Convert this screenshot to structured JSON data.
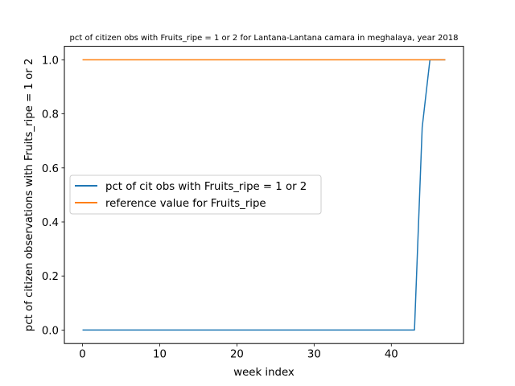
{
  "chart_data": {
    "type": "line",
    "title": "pct of citizen obs with Fruits_ripe = 1 or 2 for Lantana-Lantana camara in meghalaya, year 2018",
    "xlabel": "week index",
    "ylabel": "pct of citizen observations with Fruits_ripe = 1 or 2",
    "xlim": [
      -2.35,
      49.35
    ],
    "ylim": [
      -0.05,
      1.05
    ],
    "xticks": [
      0,
      10,
      20,
      30,
      40
    ],
    "yticks": [
      0.0,
      0.2,
      0.4,
      0.6,
      0.8,
      1.0
    ],
    "xtick_labels": [
      "0",
      "10",
      "20",
      "30",
      "40"
    ],
    "ytick_labels": [
      "0.0",
      "0.2",
      "0.4",
      "0.6",
      "0.8",
      "1.0"
    ],
    "grid": false,
    "legend_position": "center-left",
    "series": [
      {
        "name": "pct of cit obs with Fruits_ripe = 1 or 2",
        "color": "#1f77b4",
        "x": [
          0,
          1,
          2,
          3,
          4,
          5,
          6,
          7,
          8,
          9,
          10,
          11,
          12,
          13,
          14,
          15,
          16,
          17,
          18,
          19,
          20,
          21,
          22,
          23,
          24,
          25,
          26,
          27,
          28,
          29,
          30,
          31,
          32,
          33,
          34,
          35,
          36,
          37,
          38,
          39,
          40,
          41,
          42,
          43,
          44,
          45,
          46,
          47
        ],
        "y": [
          0,
          0,
          0,
          0,
          0,
          0,
          0,
          0,
          0,
          0,
          0,
          0,
          0,
          0,
          0,
          0,
          0,
          0,
          0,
          0,
          0,
          0,
          0,
          0,
          0,
          0,
          0,
          0,
          0,
          0,
          0,
          0,
          0,
          0,
          0,
          0,
          0,
          0,
          0,
          0,
          0,
          0,
          0,
          0,
          0.75,
          1,
          1,
          1
        ]
      },
      {
        "name": "reference value for Fruits_ripe",
        "color": "#ff7f0e",
        "x": [
          0,
          1,
          2,
          3,
          4,
          5,
          6,
          7,
          8,
          9,
          10,
          11,
          12,
          13,
          14,
          15,
          16,
          17,
          18,
          19,
          20,
          21,
          22,
          23,
          24,
          25,
          26,
          27,
          28,
          29,
          30,
          31,
          32,
          33,
          34,
          35,
          36,
          37,
          38,
          39,
          40,
          41,
          42,
          43,
          44,
          45,
          46,
          47
        ],
        "y": [
          1,
          1,
          1,
          1,
          1,
          1,
          1,
          1,
          1,
          1,
          1,
          1,
          1,
          1,
          1,
          1,
          1,
          1,
          1,
          1,
          1,
          1,
          1,
          1,
          1,
          1,
          1,
          1,
          1,
          1,
          1,
          1,
          1,
          1,
          1,
          1,
          1,
          1,
          1,
          1,
          1,
          1,
          1,
          1,
          1,
          1,
          1,
          1
        ]
      }
    ]
  }
}
